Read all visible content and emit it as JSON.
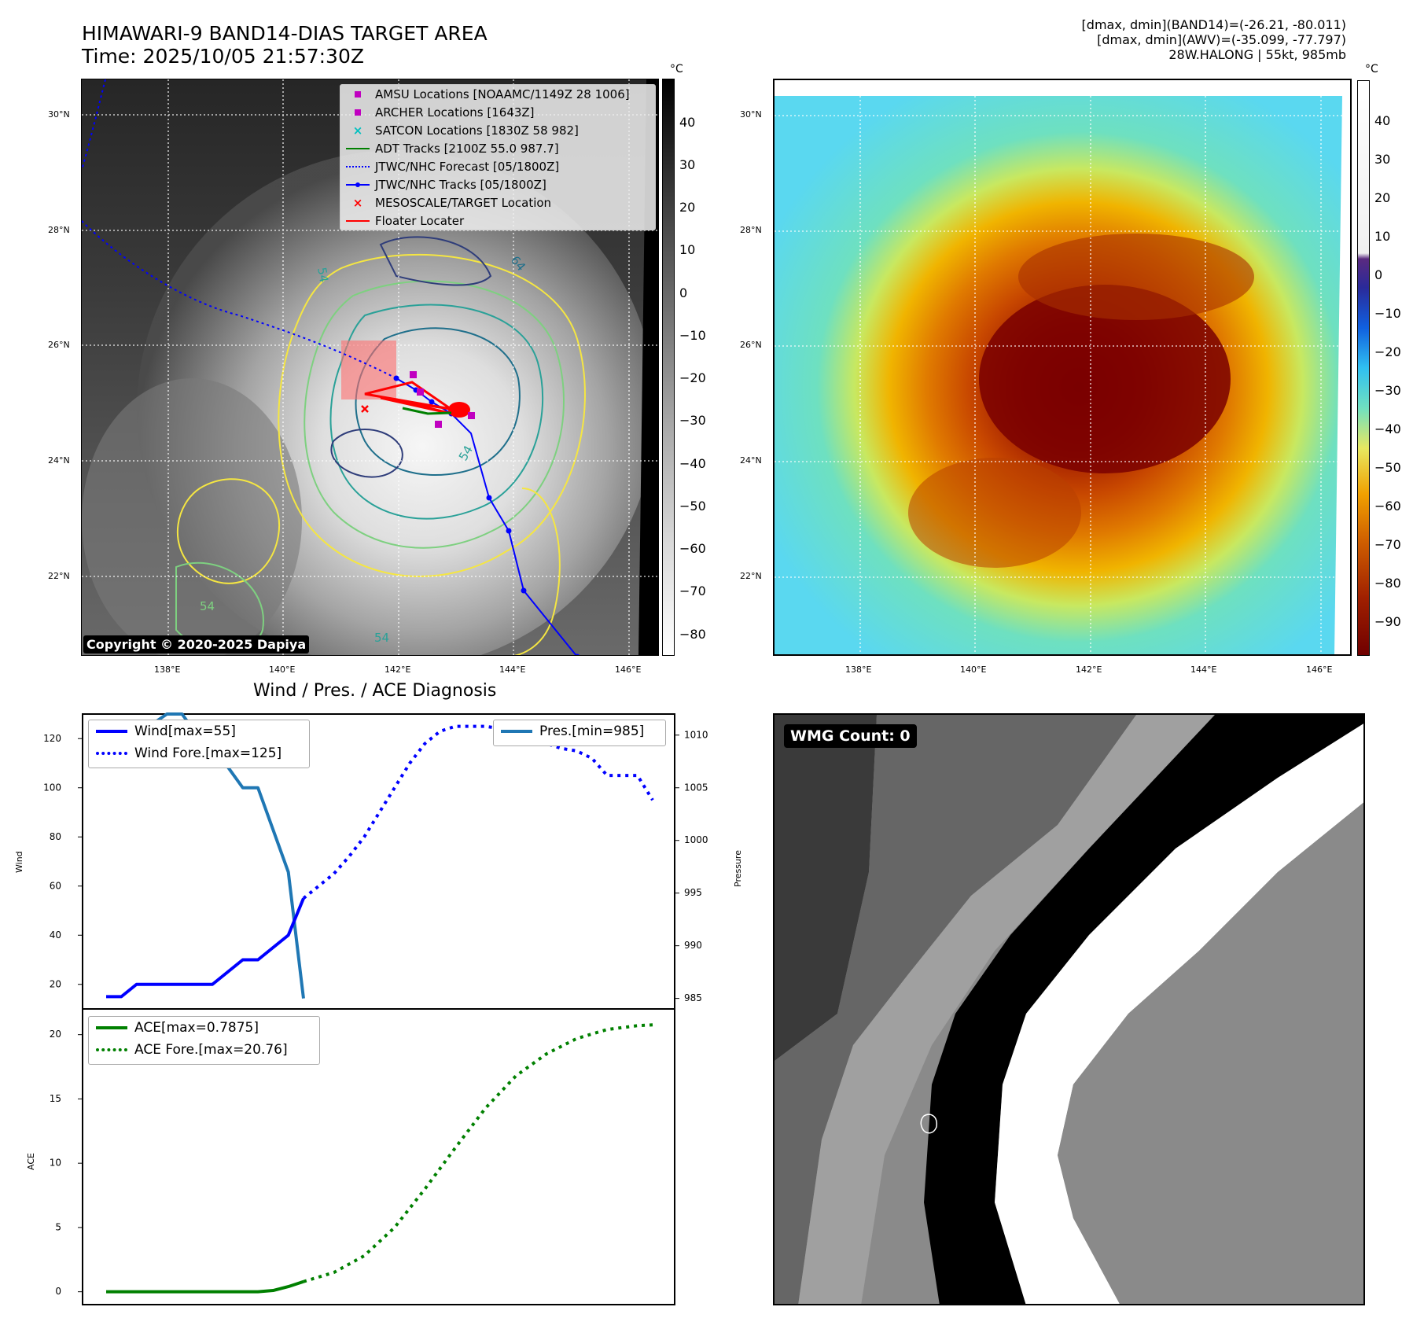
{
  "header": {
    "title_line1": "HIMAWARI-9 BAND14-DIAS TARGET AREA",
    "title_line2": "Time: 2025/10/05 21:57:30Z",
    "info_line1": "[dmax, dmin](BAND14)=(-26.21, -80.011)",
    "info_line2": "[dmax, dmin](AWV)=(-35.099, -77.797)",
    "info_line3": "28W.HALONG | 55kt, 985mb"
  },
  "map": {
    "lat_labels": [
      "30°N",
      "28°N",
      "26°N",
      "24°N",
      "22°N"
    ],
    "lon_labels": [
      "138°E",
      "140°E",
      "142°E",
      "144°E",
      "146°E"
    ],
    "contour_labels": [
      "54",
      "64",
      "54",
      "54",
      "54"
    ],
    "copyright": "Copyright © 2020-2025 Dapiya",
    "legend": [
      {
        "label": "AMSU Locations [NOAAMC/1149Z 28 1006]",
        "color": "#c000c0",
        "symbol": "square"
      },
      {
        "label": "ARCHER Locations [1643Z]",
        "color": "#c000c0",
        "symbol": "square"
      },
      {
        "label": "SATCON Locations [1830Z 58 982]",
        "color": "#00c0c0",
        "symbol": "x"
      },
      {
        "label": "ADT Tracks [2100Z 55.0 987.7]",
        "color": "#008000",
        "symbol": "line"
      },
      {
        "label": "JTWC/NHC Forecast [05/1800Z]",
        "color": "#0000ff",
        "symbol": "dotted"
      },
      {
        "label": "JTWC/NHC Tracks [05/1800Z]",
        "color": "#0000ff",
        "symbol": "line-dot"
      },
      {
        "label": "MESOSCALE/TARGET Location",
        "color": "#ff0000",
        "symbol": "x"
      },
      {
        "label": "Floater Locater",
        "color": "#ff0000",
        "symbol": "line"
      }
    ]
  },
  "colorbar_gray": {
    "unit": "°C",
    "ticks": [
      "40",
      "30",
      "20",
      "10",
      "0",
      "−10",
      "−20",
      "−30",
      "−40",
      "−50",
      "−60",
      "−70",
      "−80"
    ]
  },
  "colorbar_color": {
    "unit": "°C",
    "ticks": [
      "40",
      "30",
      "20",
      "10",
      "0",
      "−10",
      "−20",
      "−30",
      "−40",
      "−50",
      "−60",
      "−70",
      "−80",
      "−90"
    ]
  },
  "diag": {
    "title": "Wind / Pres. / ACE Diagnosis",
    "wind_axis_label": "Wind",
    "pres_axis_label": "Pressure",
    "ace_axis_label": "ACE",
    "wind_ticks": [
      "120",
      "100",
      "80",
      "60",
      "40",
      "20"
    ],
    "pres_ticks": [
      "1010",
      "1005",
      "1000",
      "995",
      "990",
      "985"
    ],
    "ace_ticks": [
      "20",
      "15",
      "10",
      "5",
      "0"
    ],
    "legend_wind": "Wind[max=55]",
    "legend_wind_fore": "Wind Fore.[max=125]",
    "legend_pres": "Pres.[min=985]",
    "legend_ace": "ACE[max=0.7875]",
    "legend_ace_fore": "ACE Fore.[max=20.76]"
  },
  "wmg": {
    "count_label": "WMG Count: 0"
  },
  "colors": {
    "wind": "#0000ff",
    "pres": "#1f77b4",
    "ace": "#008000",
    "floater": "#ff0000"
  },
  "chart_data": [
    {
      "type": "line",
      "title": "Wind / Pres. / ACE Diagnosis",
      "ylabel": "Wind",
      "ylim": [
        10,
        130
      ],
      "series": [
        {
          "name": "Wind[max=55]",
          "x": [
            0,
            1,
            2,
            3,
            4,
            5,
            6,
            7,
            8,
            9,
            10,
            11,
            12,
            13
          ],
          "values": [
            15,
            15,
            20,
            20,
            20,
            20,
            20,
            20,
            25,
            30,
            30,
            35,
            40,
            55
          ]
        },
        {
          "name": "Wind Fore.[max=125]",
          "x": [
            13,
            14,
            15,
            16,
            17,
            18,
            19,
            20,
            21,
            22,
            23,
            24,
            25,
            26,
            27,
            28,
            29,
            30,
            31,
            32,
            33,
            34,
            35,
            36
          ],
          "values": [
            55,
            60,
            65,
            72,
            80,
            90,
            100,
            110,
            118,
            123,
            125,
            125,
            125,
            124,
            122,
            120,
            118,
            116,
            115,
            112,
            105,
            105,
            105,
            95
          ]
        }
      ]
    },
    {
      "type": "line",
      "ylabel": "Pressure",
      "ylim": [
        984,
        1012
      ],
      "series": [
        {
          "name": "Pres.[min=985]",
          "x": [
            0,
            1,
            2,
            3,
            4,
            5,
            6,
            7,
            8,
            9,
            10,
            11,
            12,
            13
          ],
          "values": [
            1010,
            1010,
            1010,
            1011,
            1012,
            1012,
            1010,
            1008,
            1007,
            1005,
            1005,
            1001,
            997,
            985
          ]
        }
      ]
    },
    {
      "type": "line",
      "ylabel": "ACE",
      "ylim": [
        -1,
        22
      ],
      "series": [
        {
          "name": "ACE[max=0.7875]",
          "x": [
            0,
            2,
            4,
            6,
            8,
            10,
            11,
            12,
            13
          ],
          "values": [
            0,
            0,
            0,
            0,
            0,
            0,
            0.1,
            0.4,
            0.79
          ]
        },
        {
          "name": "ACE Fore.[max=20.76]",
          "x": [
            13,
            15,
            17,
            19,
            21,
            23,
            25,
            27,
            29,
            31,
            33,
            35,
            36
          ],
          "values": [
            0.79,
            1.5,
            2.8,
            5,
            8,
            11.2,
            14.3,
            16.8,
            18.5,
            19.7,
            20.4,
            20.7,
            20.76
          ]
        }
      ]
    }
  ]
}
